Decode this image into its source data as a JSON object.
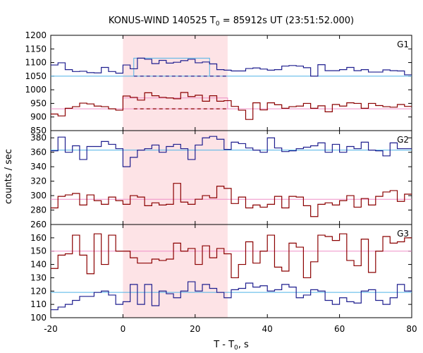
{
  "chart_data": {
    "type": "line",
    "title_main": "KONUS-WIND 140525 T",
    "title_sub": "0",
    "title_rest": " = 85912s UT (23:51:52.000)",
    "xlabel_main": "T - T",
    "xlabel_sub": "0",
    "xlabel_rest": ", s",
    "ylabel": "counts / sec",
    "xlim": [
      -20,
      80
    ],
    "xticks": [
      "-20",
      "0",
      "20",
      "40",
      "60",
      "80"
    ],
    "shaded_interval": [
      0,
      29
    ],
    "colors": {
      "blue": "#1f1f8f",
      "red": "#8b0000",
      "bg_blue": "#4fb3e6",
      "bg_pink": "#ef8fc7",
      "shade": "#fde3e6"
    },
    "x_bins": [
      -20,
      -18,
      -16,
      -14,
      -12,
      -10,
      -8,
      -6,
      -4,
      -2,
      0,
      2,
      4,
      6,
      8,
      10,
      12,
      14,
      16,
      18,
      20,
      22,
      24,
      26,
      28,
      30,
      32,
      34,
      36,
      38,
      40,
      42,
      44,
      46,
      48,
      50,
      52,
      54,
      56,
      58,
      60,
      62,
      64,
      66,
      68,
      70,
      72,
      74,
      76,
      78
    ],
    "panels": [
      {
        "label": "G1",
        "ylim": [
          850,
          1200
        ],
        "yticks": [
          "850",
          "900",
          "950",
          "1000",
          "1050",
          "1100",
          "1150",
          "1200"
        ],
        "series": [
          {
            "color": "blue",
            "values": [
              1091,
              1099,
              1074,
              1067,
              1068,
              1063,
              1062,
              1082,
              1067,
              1061,
              1091,
              1077,
              1116,
              1112,
              1096,
              1108,
              1098,
              1101,
              1107,
              1112,
              1099,
              1102,
              1095,
              1074,
              1072,
              1069,
              1069,
              1078,
              1080,
              1076,
              1072,
              1074,
              1087,
              1089,
              1087,
              1081,
              1050,
              1092,
              1070,
              1070,
              1074,
              1082,
              1070,
              1074,
              1065,
              1065,
              1073,
              1070,
              1069,
              1055
            ],
            "background": {
              "color": "bg_blue",
              "level": 1050
            },
            "excess": {
              "color": "bg_blue",
              "segments": [
                [
                  3,
                  24,
                  1116
                ]
              ]
            },
            "dashed": {
              "from": 3,
              "to": 29,
              "level": 1050
            }
          },
          {
            "color": "red",
            "values": [
              911,
              904,
              932,
              938,
              951,
              948,
              940,
              938,
              930,
              925,
              977,
              972,
              962,
              989,
              978,
              972,
              970,
              967,
              990,
              975,
              980,
              958,
              978,
              958,
              960,
              939,
              925,
              891,
              952,
              926,
              952,
              945,
              932,
              938,
              940,
              950,
              932,
              941,
              919,
              946,
              940,
              952,
              950,
              932,
              950,
              942,
              938,
              936,
              946,
              939
            ],
            "background": {
              "color": "bg_pink",
              "level": 930
            },
            "excess": {
              "color": "bg_pink",
              "segments": [
                [
                  0,
                  29,
                  970
                ]
              ]
            },
            "dashed": {
              "from": 3,
              "to": 29,
              "level": 930
            }
          }
        ]
      },
      {
        "label": "G2",
        "ylim": [
          260,
          390
        ],
        "yticks": [
          "260",
          "280",
          "300",
          "320",
          "340",
          "360",
          "380"
        ],
        "series": [
          {
            "color": "blue",
            "values": [
              362,
              381,
              360,
              369,
              350,
              368,
              368,
              375,
              371,
              365,
              340,
              353,
              363,
              365,
              370,
              360,
              368,
              371,
              365,
              350,
              370,
              380,
              382,
              378,
              364,
              374,
              372,
              366,
              363,
              360,
              380,
              366,
              361,
              362,
              365,
              367,
              369,
              373,
              360,
              371,
              360,
              368,
              365,
              374,
              363,
              362,
              355,
              373,
              365,
              365
            ],
            "background": {
              "color": "bg_blue",
              "level": 363
            }
          },
          {
            "color": "red",
            "values": [
              283,
              299,
              301,
              303,
              287,
              301,
              293,
              288,
              298,
              293,
              288,
              300,
              298,
              286,
              290,
              287,
              288,
              317,
              291,
              288,
              295,
              300,
              297,
              313,
              310,
              289,
              298,
              283,
              287,
              284,
              288,
              299,
              283,
              299,
              298,
              286,
              271,
              288,
              290,
              287,
              293,
              300,
              284,
              296,
              287,
              299,
              305,
              307,
              292,
              302
            ],
            "background": {
              "color": "bg_pink",
              "level": 295
            }
          }
        ]
      },
      {
        "label": "G3",
        "ylim": [
          100,
          170
        ],
        "yticks": [
          "100",
          "110",
          "120",
          "130",
          "140",
          "150",
          "160"
        ],
        "series": [
          {
            "color": "red",
            "values": [
              137,
              147,
              148,
              162,
              147,
              133,
              163,
              140,
              162,
              150,
              150,
              145,
              141,
              141,
              144,
              143,
              144,
              156,
              150,
              152,
              140,
              154,
              145,
              152,
              148,
              130,
              140,
              157,
              141,
              150,
              162,
              138,
              135,
              156,
              153,
              130,
              142,
              162,
              161,
              158,
              163,
              143,
              139,
              159,
              134,
              150,
              161,
              156,
              157,
              160
            ],
            "background": {
              "color": "bg_pink",
              "level": 150
            }
          },
          {
            "color": "blue",
            "values": [
              106,
              108,
              110,
              113,
              116,
              116,
              119,
              120,
              117,
              110,
              112,
              125,
              110,
              125,
              109,
              120,
              118,
              115,
              120,
              127,
              120,
              125,
              122,
              119,
              115,
              121,
              122,
              126,
              123,
              124,
              120,
              121,
              125,
              123,
              115,
              117,
              121,
              120,
              113,
              110,
              115,
              112,
              111,
              120,
              121,
              113,
              110,
              115,
              125,
              120
            ],
            "background": {
              "color": "bg_blue",
              "level": 119
            }
          }
        ]
      }
    ]
  }
}
